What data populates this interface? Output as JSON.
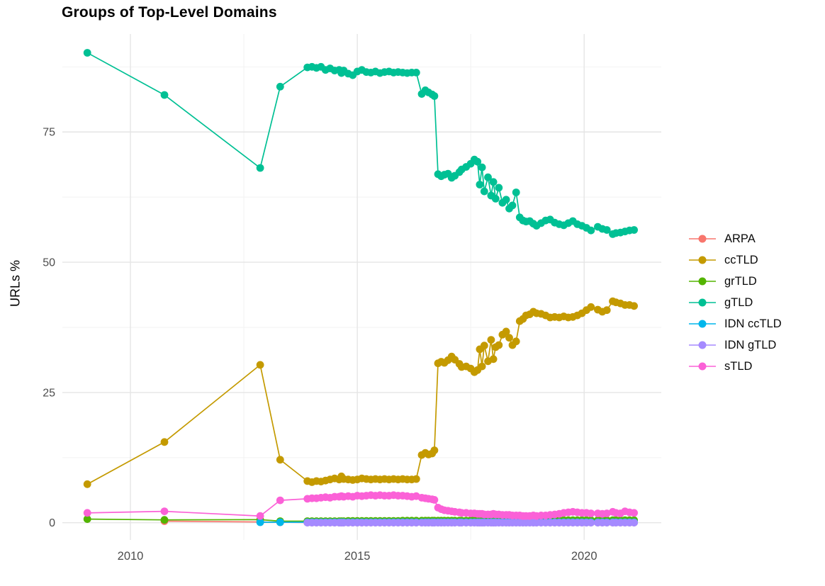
{
  "page": {
    "background": "#ffffff",
    "text_color": "#000000",
    "tick_color": "#4d4d4d",
    "grid_major_color": "#e5e5e5",
    "grid_minor_color": "#f2f2f2"
  },
  "chart_data": {
    "type": "line",
    "title": "Groups of Top-Level Domains",
    "xlabel": "",
    "ylabel": "URLs %",
    "grid": true,
    "legend_position": "right",
    "x_axis": {
      "lim": [
        2008.5,
        2021.7
      ],
      "ticks": [
        2010,
        2015,
        2020
      ],
      "tick_labels": [
        "2010",
        "2015",
        "2020"
      ],
      "minor_ticks": [
        2012.5,
        2017.5
      ]
    },
    "y_axis": {
      "lim": [
        -3.3,
        93.8
      ],
      "ticks": [
        0,
        25,
        50,
        75
      ],
      "tick_labels": [
        "0",
        "25",
        "50",
        "75"
      ],
      "minor_ticks": [
        12.5,
        37.5,
        62.5,
        87.5
      ]
    },
    "x": [
      2009.05,
      2010.75,
      2012.86,
      2013.3,
      2013.9,
      2014.0,
      2014.1,
      2014.2,
      2014.3,
      2014.4,
      2014.5,
      2014.6,
      2014.65,
      2014.7,
      2014.8,
      2014.9,
      2015.0,
      2015.1,
      2015.2,
      2015.3,
      2015.4,
      2015.5,
      2015.6,
      2015.7,
      2015.8,
      2015.9,
      2016.0,
      2016.1,
      2016.2,
      2016.3,
      2016.42,
      2016.5,
      2016.57,
      2016.65,
      2016.7,
      2016.78,
      2016.85,
      2016.92,
      2017.0,
      2017.08,
      2017.15,
      2017.25,
      2017.3,
      2017.4,
      2017.5,
      2017.58,
      2017.65,
      2017.7,
      2017.75,
      2017.8,
      2017.88,
      2017.95,
      2018.0,
      2018.05,
      2018.12,
      2018.2,
      2018.28,
      2018.35,
      2018.42,
      2018.5,
      2018.58,
      2018.65,
      2018.72,
      2018.8,
      2018.88,
      2018.95,
      2019.05,
      2019.15,
      2019.25,
      2019.35,
      2019.45,
      2019.55,
      2019.65,
      2019.75,
      2019.85,
      2019.95,
      2020.05,
      2020.15,
      2020.3,
      2020.4,
      2020.5,
      2020.63,
      2020.7,
      2020.8,
      2020.9,
      2021.0,
      2021.1
    ],
    "series": [
      {
        "name": "ARPA",
        "slug": "arpa",
        "color": "#F8766D",
        "y": [
          null,
          0.3,
          0.15,
          0.1,
          0.05,
          0.05,
          0.05,
          0.05,
          0.05,
          0.05,
          0.05,
          0.05,
          0.05,
          0.05,
          0.05,
          0.05,
          0.05,
          0.05,
          0.05,
          0.05,
          0.05,
          0.05,
          0.05,
          0.05,
          0.05,
          0.05,
          0.05,
          0.05,
          0.05,
          0.05,
          0.05,
          0.05,
          0.05,
          0.05,
          0.05,
          0.05,
          0.05,
          0.05,
          0.05,
          0.05,
          0.05,
          0.05,
          0.05,
          0.05,
          0.05,
          0.05,
          0.05,
          0.05,
          0.05,
          0.05,
          0.05,
          0.05,
          0.05,
          0.05,
          0.05,
          0.05,
          0.05,
          0.05,
          0.05,
          0.05,
          0.05,
          0.05,
          0.05,
          0.05,
          0.05,
          0.05,
          0.05,
          0.05,
          0.05,
          0.05,
          0.05,
          0.05,
          0.05,
          0.05,
          0.05,
          0.05,
          0.05,
          0.05,
          0.05,
          0.05,
          0.05,
          0.05,
          0.05,
          0.05,
          0.05,
          0.05,
          0.05
        ]
      },
      {
        "name": "ccTLD",
        "slug": "cctld",
        "color": "#C49A00",
        "y": [
          7.4,
          15.5,
          30.3,
          12.1,
          8.0,
          7.8,
          8.0,
          7.9,
          8.1,
          8.3,
          8.5,
          8.3,
          8.9,
          8.4,
          8.3,
          8.2,
          8.3,
          8.5,
          8.4,
          8.3,
          8.4,
          8.3,
          8.4,
          8.3,
          8.4,
          8.3,
          8.4,
          8.3,
          8.3,
          8.4,
          13.0,
          13.4,
          13.1,
          13.3,
          13.9,
          30.6,
          30.9,
          30.7,
          31.2,
          31.9,
          31.3,
          30.5,
          29.9,
          30.0,
          29.6,
          28.9,
          29.3,
          33.3,
          30.0,
          34.0,
          31.0,
          35.1,
          31.4,
          33.7,
          34.1,
          36.1,
          36.7,
          35.5,
          34.1,
          34.8,
          38.7,
          39.1,
          39.8,
          40.0,
          40.5,
          40.2,
          40.1,
          39.8,
          39.4,
          39.5,
          39.4,
          39.6,
          39.4,
          39.5,
          39.8,
          40.2,
          40.8,
          41.4,
          40.9,
          40.5,
          40.8,
          42.5,
          42.3,
          42.1,
          41.8,
          41.8,
          41.6
        ]
      },
      {
        "name": "grTLD",
        "slug": "grtld",
        "color": "#53B400",
        "y": [
          0.7,
          0.55,
          0.6,
          0.3,
          0.3,
          0.3,
          0.3,
          0.3,
          0.3,
          0.3,
          0.3,
          0.3,
          0.3,
          0.3,
          0.35,
          0.35,
          0.35,
          0.35,
          0.35,
          0.35,
          0.35,
          0.35,
          0.35,
          0.35,
          0.35,
          0.35,
          0.4,
          0.4,
          0.4,
          0.4,
          0.4,
          0.4,
          0.4,
          0.4,
          0.4,
          0.4,
          0.4,
          0.4,
          0.4,
          0.4,
          0.4,
          0.4,
          0.4,
          0.4,
          0.45,
          0.45,
          0.45,
          0.45,
          0.45,
          0.45,
          0.45,
          0.45,
          0.45,
          0.45,
          0.45,
          0.45,
          0.45,
          0.45,
          0.45,
          0.45,
          0.45,
          0.45,
          0.45,
          0.45,
          0.5,
          0.5,
          0.5,
          0.5,
          0.5,
          0.5,
          0.5,
          0.5,
          0.5,
          0.5,
          0.5,
          0.5,
          0.5,
          0.5,
          0.5,
          0.5,
          0.5,
          0.5,
          0.5,
          0.5,
          0.5,
          0.5,
          0.5
        ]
      },
      {
        "name": "gTLD",
        "slug": "gtld",
        "color": "#00C094",
        "y": [
          90.2,
          82.1,
          68.1,
          83.7,
          87.4,
          87.5,
          87.3,
          87.5,
          86.9,
          87.2,
          86.8,
          86.9,
          86.3,
          86.8,
          86.2,
          85.9,
          86.6,
          86.9,
          86.5,
          86.4,
          86.6,
          86.3,
          86.5,
          86.6,
          86.4,
          86.5,
          86.4,
          86.3,
          86.4,
          86.4,
          82.3,
          83.0,
          82.6,
          82.2,
          81.9,
          66.9,
          66.5,
          66.8,
          67.0,
          66.2,
          66.6,
          67.3,
          67.8,
          68.3,
          68.9,
          69.7,
          69.3,
          64.9,
          68.2,
          63.6,
          66.3,
          62.8,
          65.4,
          62.2,
          64.3,
          61.4,
          62.0,
          60.3,
          60.9,
          63.4,
          58.6,
          58.0,
          57.8,
          57.9,
          57.4,
          57.0,
          57.5,
          58.0,
          58.2,
          57.6,
          57.3,
          57.1,
          57.5,
          57.9,
          57.3,
          57.0,
          56.6,
          56.1,
          56.8,
          56.4,
          56.2,
          55.4,
          55.6,
          55.7,
          55.9,
          56.1,
          56.2
        ]
      },
      {
        "name": "IDN ccTLD",
        "slug": "idn-cctld",
        "color": "#00B6EB",
        "y": [
          null,
          null,
          0.1,
          0.1,
          0.1,
          0.1,
          0.1,
          0.1,
          0.1,
          0.1,
          0.1,
          0.1,
          0.1,
          0.1,
          0.1,
          0.1,
          0.1,
          0.1,
          0.1,
          0.1,
          0.1,
          0.1,
          0.1,
          0.1,
          0.1,
          0.1,
          0.1,
          0.1,
          0.1,
          0.1,
          0.1,
          0.1,
          0.1,
          0.1,
          0.1,
          0.1,
          0.1,
          0.1,
          0.1,
          0.1,
          0.1,
          0.1,
          0.1,
          0.1,
          0.1,
          0.1,
          0.1,
          0.1,
          0.1,
          0.1,
          0.1,
          0.1,
          0.1,
          0.1,
          0.1,
          0.1,
          0.1,
          0.1,
          0.1,
          0.1,
          0.1,
          0.1,
          0.1,
          0.1,
          0.1,
          0.1,
          0.1,
          0.1,
          0.1,
          0.1,
          0.1,
          0.1,
          0.1,
          0.1,
          0.1,
          0.1,
          0.1,
          0.1,
          0.1,
          0.1,
          0.1,
          0.1,
          0.1,
          0.1,
          0.1,
          0.1,
          0.1
        ]
      },
      {
        "name": "IDN gTLD",
        "slug": "idn-gtld",
        "color": "#A58AFF",
        "y": [
          null,
          null,
          null,
          null,
          0.02,
          0.02,
          0.02,
          0.02,
          0.02,
          0.02,
          0.02,
          0.02,
          0.02,
          0.02,
          0.02,
          0.02,
          0.02,
          0.02,
          0.02,
          0.02,
          0.02,
          0.02,
          0.02,
          0.02,
          0.02,
          0.02,
          0.02,
          0.02,
          0.02,
          0.02,
          0.02,
          0.02,
          0.02,
          0.02,
          0.02,
          0.02,
          0.02,
          0.02,
          0.02,
          0.02,
          0.02,
          0.02,
          0.02,
          0.02,
          0.02,
          0.02,
          0.02,
          0.02,
          0.02,
          0.02,
          0.02,
          0.02,
          0.02,
          0.02,
          0.02,
          0.02,
          0.02,
          0.02,
          0.02,
          0.02,
          0.02,
          0.02,
          0.02,
          0.02,
          0.02,
          0.02,
          0.02,
          0.02,
          0.02,
          0.02,
          0.02,
          0.02,
          0.02,
          0.02,
          0.02,
          0.02,
          0.02,
          0.02,
          0.02,
          0.02,
          0.02,
          0.02,
          0.02,
          0.02,
          0.02,
          0.02,
          0.02
        ]
      },
      {
        "name": "sTLD",
        "slug": "stld",
        "color": "#FB61D7",
        "y": [
          1.9,
          2.2,
          1.3,
          4.3,
          4.6,
          4.7,
          4.7,
          4.8,
          4.9,
          4.8,
          5.0,
          5.0,
          5.1,
          5.0,
          5.1,
          5.0,
          5.2,
          5.1,
          5.2,
          5.3,
          5.2,
          5.3,
          5.2,
          5.2,
          5.3,
          5.2,
          5.2,
          5.1,
          5.0,
          5.1,
          4.8,
          4.7,
          4.6,
          4.5,
          4.4,
          2.9,
          2.6,
          2.4,
          2.3,
          2.2,
          2.1,
          2.0,
          1.9,
          1.9,
          1.8,
          1.8,
          1.7,
          1.7,
          1.7,
          1.6,
          1.6,
          1.6,
          1.7,
          1.6,
          1.6,
          1.5,
          1.5,
          1.5,
          1.4,
          1.4,
          1.4,
          1.3,
          1.3,
          1.3,
          1.4,
          1.3,
          1.4,
          1.4,
          1.5,
          1.6,
          1.7,
          1.9,
          2.0,
          2.1,
          2.0,
          1.9,
          1.9,
          1.8,
          1.8,
          1.7,
          1.8,
          2.1,
          1.9,
          1.8,
          2.2,
          2.0,
          1.9
        ]
      }
    ]
  }
}
